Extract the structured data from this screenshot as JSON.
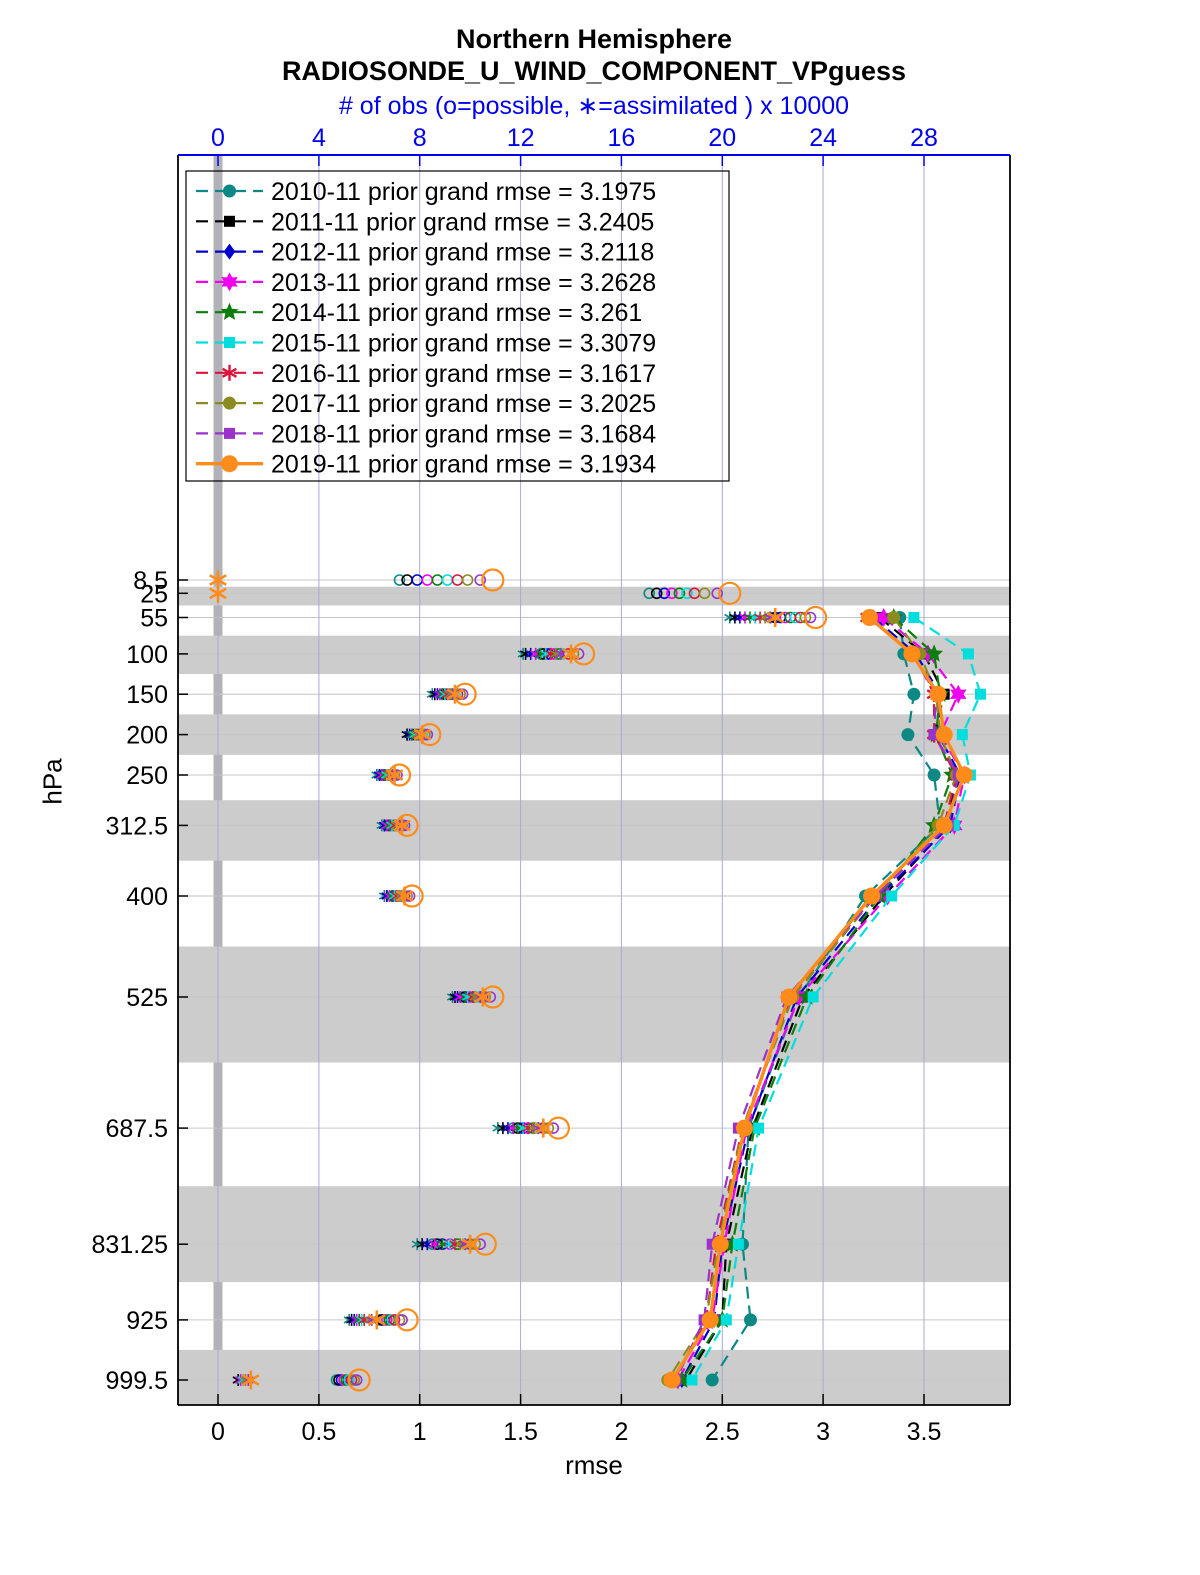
{
  "style": {
    "band_color": "#cccccc",
    "zero_band_color": "#b3b3b3",
    "grid_color": "#a9a9d9",
    "top_axis_color": "#0000ee",
    "axis_color": "#000000"
  },
  "chart_data": {
    "type": "line",
    "title": "Northern Hemisphere",
    "subtitle": "RADIOSONDE_U_WIND_COMPONENT_VPguess",
    "top_axis_label": "# of obs (o=possible, ∗=assimilated ) x 10000",
    "xlabel": "rmse",
    "ylabel": "hPa",
    "xlim": [
      -0.2,
      3.92
    ],
    "top_xlim": [
      -0.2,
      31.4
    ],
    "x_ticks": [
      0,
      0.5,
      1,
      1.5,
      2,
      2.5,
      3,
      3.5
    ],
    "top_ticks": [
      0,
      4,
      8,
      12,
      16,
      20,
      24,
      28
    ],
    "levels_hpa": [
      8.5,
      25,
      55,
      100,
      150,
      200,
      250,
      312.5,
      400,
      525,
      687.5,
      831.25,
      925,
      999.5
    ],
    "rmse_levels_hpa": [
      55,
      100,
      150,
      200,
      250,
      312.5,
      400,
      525,
      687.5,
      831.25,
      925,
      999.5
    ],
    "banded_levels_hpa": [
      25,
      100,
      200,
      312.5,
      525,
      831.25,
      999.5
    ],
    "legend_position": "top-left",
    "grid": "vertical-only",
    "series": [
      {
        "year": "2010-11",
        "label": "2010-11 prior grand rmse = 3.1975",
        "grand_rmse": 3.1975,
        "color": "#0d8985",
        "marker": "circle",
        "line_style": "dashed",
        "rmse": [
          3.38,
          3.4,
          3.45,
          3.42,
          3.55,
          3.58,
          3.21,
          2.88,
          2.63,
          2.6,
          2.64,
          2.45
        ],
        "obs_possible_x10000": [
          7.2,
          17.1,
          21.9,
          12.8,
          8.9,
          7.8,
          6.5,
          6.7,
          6.9,
          9.7,
          11.7,
          8.5,
          6.4,
          4.7
        ],
        "obs_assimilated_x10000": [
          0,
          0,
          20.3,
          12.1,
          8.5,
          7.5,
          6.3,
          6.5,
          6.6,
          9.3,
          11.1,
          7.9,
          5.2,
          0.8
        ]
      },
      {
        "year": "2011-11",
        "label": "2011-11 prior grand rmse = 3.2405",
        "grand_rmse": 3.2405,
        "color": "#000000",
        "marker": "square",
        "line_style": "dashed",
        "rmse": [
          3.28,
          3.5,
          3.6,
          3.55,
          3.66,
          3.62,
          3.3,
          2.9,
          2.65,
          2.52,
          2.5,
          2.32
        ],
        "obs_possible_x10000": [
          7.5,
          17.4,
          22.1,
          12.9,
          9.0,
          7.8,
          6.6,
          6.8,
          7.0,
          9.8,
          11.9,
          8.7,
          6.5,
          4.8
        ],
        "obs_assimilated_x10000": [
          0,
          0,
          20.5,
          12.2,
          8.6,
          7.5,
          6.4,
          6.6,
          6.7,
          9.4,
          11.3,
          8.1,
          5.3,
          0.8
        ]
      },
      {
        "year": "2012-11",
        "label": "2012-11 prior grand rmse = 3.2118",
        "grand_rmse": 3.2118,
        "color": "#0000cc",
        "marker": "diamond",
        "line_style": "dashed",
        "rmse": [
          3.25,
          3.46,
          3.58,
          3.57,
          3.68,
          3.63,
          3.28,
          2.87,
          2.63,
          2.5,
          2.46,
          2.3
        ],
        "obs_possible_x10000": [
          7.9,
          17.7,
          22.3,
          13.1,
          9.1,
          7.9,
          6.6,
          6.8,
          7.0,
          9.9,
          12.1,
          8.9,
          6.6,
          4.9
        ],
        "obs_assimilated_x10000": [
          0,
          0,
          20.7,
          12.4,
          8.7,
          7.6,
          6.4,
          6.6,
          6.7,
          9.5,
          11.5,
          8.3,
          5.4,
          0.9
        ]
      },
      {
        "year": "2013-11",
        "label": "2013-11 prior grand rmse = 3.2628",
        "grand_rmse": 3.2628,
        "color": "#ee00ee",
        "marker": "star6",
        "line_style": "dashed",
        "rmse": [
          3.3,
          3.52,
          3.67,
          3.58,
          3.7,
          3.65,
          3.32,
          2.88,
          2.62,
          2.51,
          2.45,
          2.28
        ],
        "obs_possible_x10000": [
          8.3,
          18.0,
          22.5,
          13.3,
          9.2,
          8.0,
          6.7,
          6.9,
          7.1,
          10.0,
          12.3,
          9.2,
          6.7,
          5.0
        ],
        "obs_assimilated_x10000": [
          0,
          0,
          20.9,
          12.6,
          8.8,
          7.7,
          6.5,
          6.7,
          6.8,
          9.6,
          11.7,
          8.6,
          5.5,
          0.9
        ]
      },
      {
        "year": "2014-11",
        "label": "2014-11 prior grand rmse = 3.261",
        "grand_rmse": 3.261,
        "color": "#0a7d0a",
        "marker": "star5",
        "line_style": "dashed",
        "rmse": [
          3.35,
          3.55,
          3.58,
          3.56,
          3.64,
          3.55,
          3.28,
          2.92,
          2.66,
          2.55,
          2.5,
          2.3
        ],
        "obs_possible_x10000": [
          8.7,
          18.3,
          22.7,
          13.5,
          9.3,
          8.0,
          6.8,
          7.0,
          7.2,
          10.2,
          12.5,
          9.5,
          6.8,
          5.1
        ],
        "obs_assimilated_x10000": [
          0,
          0,
          21.1,
          12.8,
          8.9,
          7.7,
          6.6,
          6.8,
          6.9,
          9.8,
          11.9,
          8.9,
          5.6,
          1.0
        ]
      },
      {
        "year": "2015-11",
        "label": "2015-11 prior grand rmse = 3.3079",
        "grand_rmse": 3.3079,
        "color": "#00dddd",
        "marker": "square",
        "line_style": "dashed",
        "rmse": [
          3.45,
          3.72,
          3.78,
          3.69,
          3.73,
          3.65,
          3.34,
          2.95,
          2.68,
          2.58,
          2.52,
          2.35
        ],
        "obs_possible_x10000": [
          9.1,
          18.6,
          22.9,
          13.7,
          9.4,
          8.1,
          6.9,
          7.1,
          7.3,
          10.3,
          12.7,
          9.8,
          6.9,
          5.2
        ],
        "obs_assimilated_x10000": [
          0,
          0,
          21.3,
          13.0,
          9.0,
          7.8,
          6.7,
          6.9,
          7.0,
          9.9,
          12.1,
          9.2,
          5.7,
          1.0
        ]
      },
      {
        "year": "2016-11",
        "label": "2016-11 prior grand rmse = 3.1617",
        "grand_rmse": 3.1617,
        "color": "#dc143c",
        "marker": "asterisk",
        "line_style": "dashed",
        "rmse": [
          3.22,
          3.45,
          3.55,
          3.55,
          3.66,
          3.6,
          3.25,
          2.84,
          2.6,
          2.47,
          2.42,
          2.26
        ],
        "obs_possible_x10000": [
          9.5,
          18.9,
          23.1,
          13.9,
          9.5,
          8.2,
          7.0,
          7.2,
          7.4,
          10.5,
          12.9,
          10.0,
          7.0,
          5.3
        ],
        "obs_assimilated_x10000": [
          0,
          0,
          21.5,
          13.2,
          9.1,
          7.9,
          6.8,
          7.0,
          7.1,
          10.1,
          12.3,
          9.4,
          5.8,
          1.1
        ]
      },
      {
        "year": "2017-11",
        "label": "2017-11 prior grand rmse = 3.2025",
        "grand_rmse": 3.2025,
        "color": "#8b8b1f",
        "marker": "circle",
        "line_style": "dashed",
        "rmse": [
          3.35,
          3.48,
          3.56,
          3.58,
          3.66,
          3.57,
          3.26,
          2.85,
          2.6,
          2.48,
          2.42,
          2.23
        ],
        "obs_possible_x10000": [
          9.9,
          19.3,
          23.3,
          14.1,
          9.6,
          8.2,
          7.0,
          7.3,
          7.5,
          10.6,
          13.1,
          10.2,
          7.2,
          5.4
        ],
        "obs_assimilated_x10000": [
          0,
          0,
          21.7,
          13.4,
          9.2,
          7.9,
          6.8,
          7.1,
          7.2,
          10.2,
          12.5,
          9.6,
          6.0,
          1.1
        ]
      },
      {
        "year": "2018-11",
        "label": "2018-11 prior grand rmse = 3.1684",
        "grand_rmse": 3.1684,
        "color": "#9933cc",
        "marker": "square",
        "line_style": "dashed",
        "rmse": [
          3.24,
          3.44,
          3.56,
          3.55,
          3.67,
          3.62,
          3.26,
          2.82,
          2.58,
          2.45,
          2.41,
          2.27
        ],
        "obs_possible_x10000": [
          10.4,
          19.8,
          23.5,
          14.3,
          9.7,
          8.3,
          7.1,
          7.4,
          7.6,
          10.8,
          13.3,
          10.4,
          7.3,
          5.5
        ],
        "obs_assimilated_x10000": [
          0,
          0,
          21.9,
          13.6,
          9.3,
          8.0,
          6.9,
          7.2,
          7.3,
          10.4,
          12.7,
          9.8,
          6.1,
          1.2
        ]
      },
      {
        "year": "2019-11",
        "label": "2019-11 prior grand rmse = 3.1934",
        "grand_rmse": 3.1934,
        "color": "#ff8c1a",
        "marker": "circle",
        "line_style": "solid",
        "rmse": [
          3.23,
          3.44,
          3.57,
          3.6,
          3.7,
          3.6,
          3.24,
          2.83,
          2.61,
          2.49,
          2.44,
          2.25
        ],
        "obs_possible_x10000": [
          10.9,
          20.3,
          23.7,
          14.5,
          9.8,
          8.4,
          7.2,
          7.5,
          7.7,
          10.9,
          13.5,
          10.6,
          7.5,
          5.6
        ],
        "obs_assimilated_x10000": [
          0,
          0,
          22.1,
          14.0,
          9.4,
          8.1,
          7.0,
          7.3,
          7.4,
          10.5,
          12.9,
          10.0,
          6.3,
          1.3
        ]
      }
    ]
  }
}
